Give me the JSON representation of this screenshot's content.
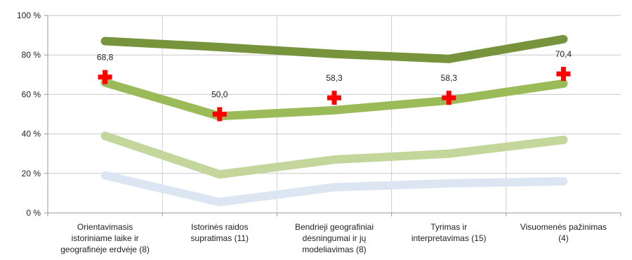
{
  "chart_data": {
    "type": "line",
    "title": "",
    "xlabel": "",
    "ylabel": "",
    "ylim": [
      0,
      100
    ],
    "y_ticks": [
      "0 %",
      "20 %",
      "40 %",
      "60 %",
      "80 %",
      "100 %"
    ],
    "y_tick_values": [
      0,
      20,
      40,
      60,
      80,
      100
    ],
    "grid": "horizontal",
    "categories": [
      [
        "Orientavimasis",
        "istoriniame laike ir",
        "geografinėje erdvėje (8)"
      ],
      [
        "Istorinės raidos",
        "supratimas (11)"
      ],
      [
        "Bendrieji geografiniai",
        "dėsningumai ir jų",
        "modeliavimas (8)"
      ],
      [
        "Tyrimas ir",
        "interpretavimas (15)"
      ],
      [
        "Visuomenės pažinimas",
        "(4)"
      ]
    ],
    "series": [
      {
        "values": [
          19,
          5.5,
          13,
          15,
          16
        ],
        "color": "#dce6f2"
      },
      {
        "values": [
          39,
          19.5,
          27,
          30,
          37
        ],
        "color": "#c3d69b"
      },
      {
        "values": [
          66,
          49,
          52,
          57,
          65.5
        ],
        "color": "#9bbb59"
      },
      {
        "values": [
          87,
          84,
          80.5,
          78,
          88
        ],
        "color": "#77933c"
      }
    ],
    "markers": {
      "values": [
        68.8,
        50.0,
        58.3,
        58.3,
        70.4
      ],
      "labels": [
        "68,8",
        "50,0",
        "58,3",
        "58,3",
        "70,4"
      ],
      "color": "#ff0000",
      "shape": "cross"
    }
  }
}
